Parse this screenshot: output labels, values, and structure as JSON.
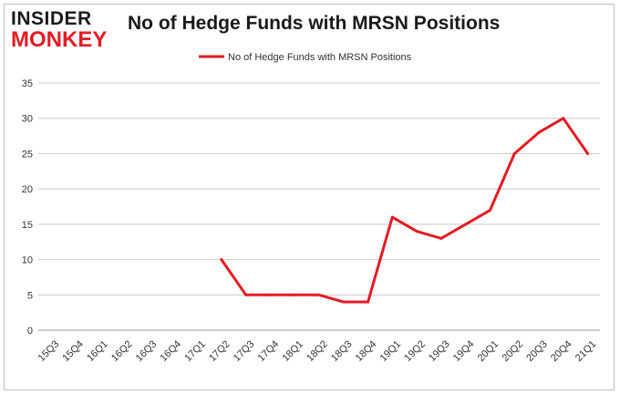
{
  "header": {
    "logo_line1": "INSIDER",
    "logo_line2": "MONKEY",
    "title": "No of Hedge Funds with MRSN Positions"
  },
  "colors": {
    "series": "#e31b23",
    "grid": "#c8c8c8",
    "text": "#333333"
  },
  "chart_data": {
    "type": "line",
    "title": "No of Hedge Funds with MRSN Positions",
    "xlabel": "",
    "ylabel": "",
    "categories": [
      "15Q3",
      "15Q4",
      "16Q1",
      "16Q2",
      "16Q3",
      "16Q4",
      "17Q1",
      "17Q2",
      "17Q3",
      "17Q4",
      "18Q1",
      "18Q2",
      "18Q3",
      "18Q4",
      "19Q1",
      "19Q2",
      "19Q3",
      "19Q4",
      "20Q1",
      "20Q2",
      "20Q3",
      "20Q4",
      "21Q1"
    ],
    "series": [
      {
        "name": "No of Hedge Funds with MRSN Positions",
        "values": [
          null,
          null,
          null,
          null,
          null,
          null,
          null,
          10,
          5,
          5,
          5,
          5,
          4,
          4,
          16,
          14,
          13,
          15,
          17,
          25,
          28,
          30,
          25
        ]
      }
    ],
    "ylim": [
      0,
      35
    ],
    "yticks": [
      0,
      5,
      10,
      15,
      20,
      25,
      30,
      35
    ],
    "grid": true,
    "legend_position": "top"
  }
}
